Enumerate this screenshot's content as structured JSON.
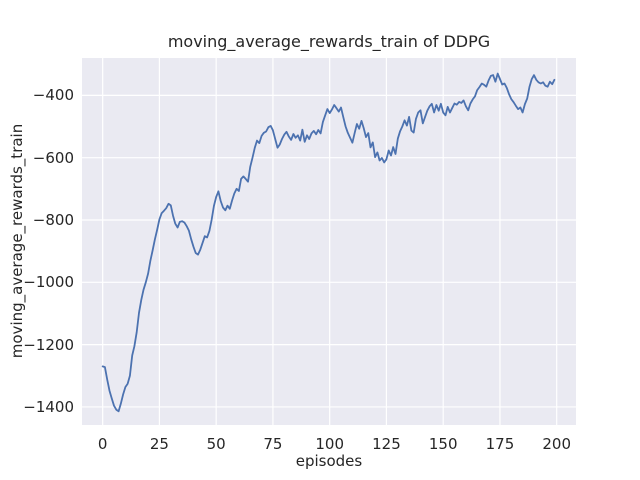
{
  "figure": {
    "background": "#ffffff"
  },
  "chart_data": {
    "type": "line",
    "title": "moving_average_rewards_train of DDPG",
    "xlabel": "episodes",
    "ylabel": "moving_average_rewards_train",
    "style": "seaborn-darkgrid",
    "plot_bg": "#eaeaf2",
    "grid_color": "#ffffff",
    "line_color": "#4c72b0",
    "text_color": "#262626",
    "grid": true,
    "legend_position": "none",
    "xticks": [
      0,
      25,
      50,
      75,
      100,
      125,
      150,
      175,
      200
    ],
    "xtick_labels": [
      "0",
      "25",
      "50",
      "75",
      "100",
      "125",
      "150",
      "175",
      "200"
    ],
    "yticks": [
      -400,
      -600,
      -800,
      -1000,
      -1200,
      -1400
    ],
    "ytick_labels": [
      "−400",
      "−600",
      "−800",
      "−1000",
      "−1200",
      "−1400"
    ],
    "xlim": [
      -9.1,
      208.5
    ],
    "ylim": [
      -1458,
      -280
    ],
    "x_start": 0,
    "x_step": 1,
    "n_points": 200,
    "series": [
      {
        "name": "moving_average_rewards_train",
        "y": [
          -1270,
          -1272,
          -1312,
          -1348,
          -1372,
          -1396,
          -1409,
          -1414,
          -1390,
          -1360,
          -1336,
          -1326,
          -1300,
          -1235,
          -1205,
          -1160,
          -1098,
          -1056,
          -1024,
          -1000,
          -972,
          -932,
          -898,
          -862,
          -832,
          -798,
          -778,
          -770,
          -762,
          -748,
          -753,
          -786,
          -812,
          -824,
          -806,
          -804,
          -808,
          -820,
          -834,
          -862,
          -886,
          -906,
          -911,
          -895,
          -874,
          -852,
          -856,
          -835,
          -800,
          -755,
          -726,
          -708,
          -739,
          -760,
          -769,
          -754,
          -764,
          -737,
          -715,
          -700,
          -707,
          -668,
          -660,
          -668,
          -677,
          -630,
          -600,
          -568,
          -545,
          -553,
          -530,
          -520,
          -516,
          -502,
          -498,
          -512,
          -540,
          -568,
          -558,
          -540,
          -526,
          -517,
          -532,
          -543,
          -524,
          -536,
          -528,
          -545,
          -510,
          -549,
          -528,
          -540,
          -522,
          -514,
          -525,
          -511,
          -522,
          -485,
          -465,
          -444,
          -457,
          -445,
          -431,
          -441,
          -452,
          -439,
          -470,
          -500,
          -520,
          -536,
          -552,
          -520,
          -492,
          -507,
          -482,
          -505,
          -534,
          -521,
          -567,
          -551,
          -598,
          -583,
          -609,
          -601,
          -615,
          -605,
          -577,
          -593,
          -566,
          -588,
          -539,
          -515,
          -500,
          -480,
          -497,
          -469,
          -513,
          -519,
          -476,
          -455,
          -448,
          -490,
          -470,
          -449,
          -435,
          -427,
          -455,
          -431,
          -449,
          -427,
          -455,
          -464,
          -437,
          -455,
          -440,
          -426,
          -430,
          -421,
          -424,
          -416,
          -435,
          -448,
          -426,
          -413,
          -403,
          -383,
          -373,
          -362,
          -366,
          -372,
          -352,
          -337,
          -335,
          -356,
          -330,
          -347,
          -365,
          -362,
          -376,
          -396,
          -412,
          -422,
          -433,
          -444,
          -439,
          -455,
          -428,
          -410,
          -372,
          -348,
          -335,
          -350,
          -358,
          -362,
          -358,
          -369,
          -372,
          -356,
          -364,
          -350
        ]
      }
    ]
  }
}
